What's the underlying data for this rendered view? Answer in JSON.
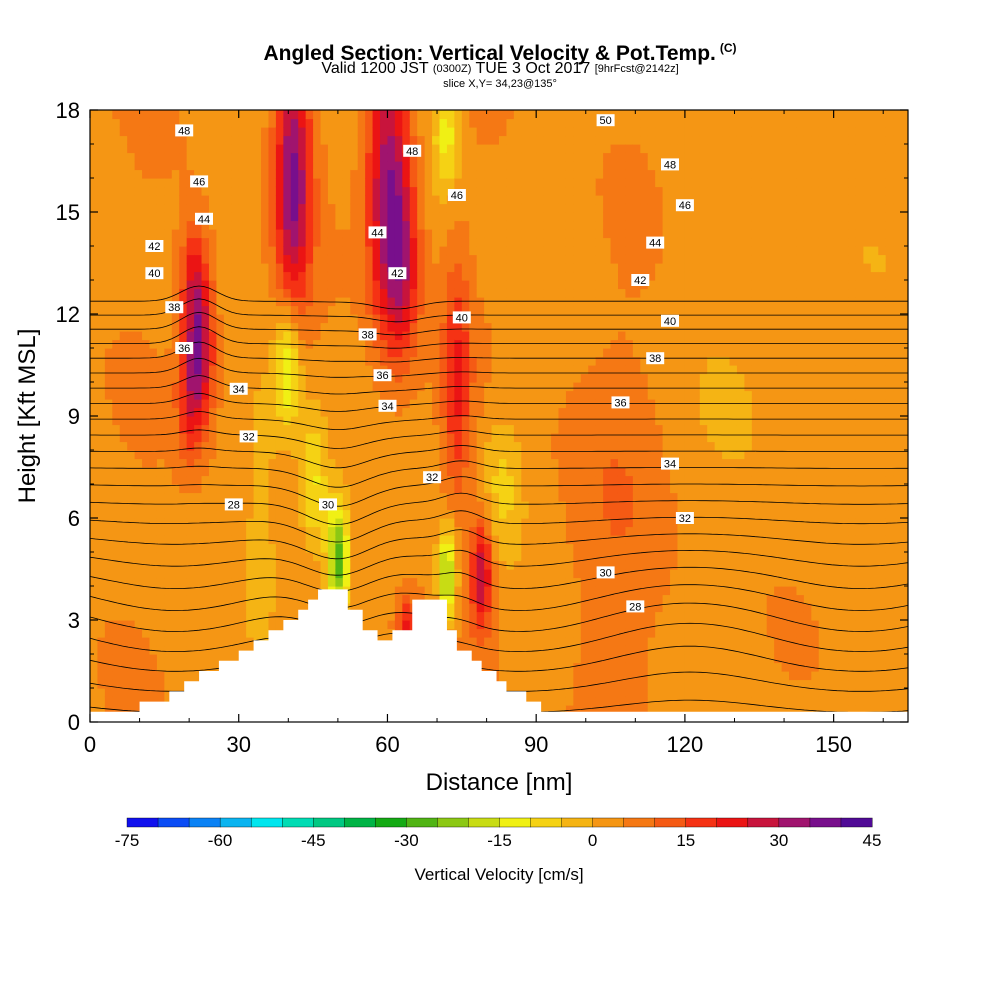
{
  "header": {
    "title": "Angled Section: Vertical Velocity & Pot.Temp.",
    "title_units": "(C)",
    "subtitle_main": "Valid 1200 JST",
    "subtitle_utc": "(0300Z)",
    "subtitle_date": "TUE 3 Oct 2017",
    "subtitle_fcst": "[9hrFcst@2142z]",
    "slice": "slice X,Y= 34,23@135°"
  },
  "chart_data": {
    "type": "heatmap",
    "xlabel": "Distance [nm]",
    "ylabel": "Height [Kft MSL]",
    "xlim": [
      0,
      165
    ],
    "ylim": [
      0,
      18
    ],
    "x_ticks": [
      0,
      30,
      60,
      90,
      120,
      150
    ],
    "y_ticks": [
      0,
      3,
      6,
      9,
      12,
      15,
      18
    ],
    "terrain": [
      [
        0,
        0.3
      ],
      [
        10,
        0.3
      ],
      [
        10,
        0.6
      ],
      [
        16,
        0.6
      ],
      [
        16,
        0.9
      ],
      [
        19,
        0.9
      ],
      [
        19,
        1.2
      ],
      [
        22,
        1.2
      ],
      [
        22,
        1.5
      ],
      [
        26,
        1.5
      ],
      [
        26,
        1.8
      ],
      [
        30,
        1.8
      ],
      [
        30,
        2.1
      ],
      [
        33,
        2.1
      ],
      [
        33,
        2.4
      ],
      [
        36,
        2.4
      ],
      [
        36,
        2.7
      ],
      [
        39,
        2.7
      ],
      [
        39,
        3.0
      ],
      [
        42,
        3.0
      ],
      [
        42,
        3.3
      ],
      [
        44,
        3.3
      ],
      [
        44,
        3.6
      ],
      [
        46,
        3.6
      ],
      [
        46,
        3.9
      ],
      [
        52,
        3.9
      ],
      [
        52,
        3.3
      ],
      [
        55,
        3.3
      ],
      [
        55,
        2.7
      ],
      [
        58,
        2.7
      ],
      [
        58,
        2.4
      ],
      [
        61,
        2.4
      ],
      [
        61,
        2.7
      ],
      [
        65,
        2.7
      ],
      [
        65,
        3.6
      ],
      [
        72,
        3.6
      ],
      [
        72,
        2.7
      ],
      [
        74,
        2.7
      ],
      [
        74,
        2.1
      ],
      [
        77,
        2.1
      ],
      [
        77,
        1.8
      ],
      [
        79,
        1.8
      ],
      [
        79,
        1.5
      ],
      [
        82,
        1.5
      ],
      [
        82,
        1.2
      ],
      [
        84,
        1.2
      ],
      [
        84,
        0.9
      ],
      [
        88,
        0.9
      ],
      [
        88,
        0.6
      ],
      [
        91,
        0.6
      ],
      [
        91,
        0.3
      ],
      [
        165,
        0.3
      ]
    ],
    "velocity_features": [
      {
        "x": 41,
        "y": 16.0,
        "sx": 2.5,
        "sy": 2.8,
        "w": 32
      },
      {
        "x": 60,
        "y": 16.0,
        "sx": 3.0,
        "sy": 3.0,
        "w": 30
      },
      {
        "x": 63,
        "y": 13.5,
        "sx": 2.5,
        "sy": 2.0,
        "w": 20
      },
      {
        "x": 22,
        "y": 11.0,
        "sx": 2.2,
        "sy": 1.5,
        "w": 30
      },
      {
        "x": 21,
        "y": 13.2,
        "sx": 2.0,
        "sy": 1.2,
        "w": 15
      },
      {
        "x": 20,
        "y": 9.2,
        "sx": 1.8,
        "sy": 1.2,
        "w": 12
      },
      {
        "x": 74,
        "y": 10.0,
        "sx": 2.0,
        "sy": 2.5,
        "w": 16
      },
      {
        "x": 79,
        "y": 4.4,
        "sx": 1.5,
        "sy": 1.2,
        "w": 26
      },
      {
        "x": 64,
        "y": 2.8,
        "sx": 1.5,
        "sy": 0.6,
        "w": 18
      },
      {
        "x": 105,
        "y": 6.0,
        "sx": 8.0,
        "sy": 4.0,
        "w": 5
      },
      {
        "x": 50,
        "y": 4.8,
        "sx": 1.6,
        "sy": 1.2,
        "w": -32
      },
      {
        "x": 45,
        "y": 7.0,
        "sx": 2.0,
        "sy": 1.5,
        "w": -16
      },
      {
        "x": 40,
        "y": 10.5,
        "sx": 1.8,
        "sy": 1.4,
        "w": -20
      },
      {
        "x": 72,
        "y": 4.3,
        "sx": 1.3,
        "sy": 1.0,
        "w": -28
      },
      {
        "x": 72,
        "y": 17.3,
        "sx": 2.0,
        "sy": 1.2,
        "w": -16
      },
      {
        "x": 83,
        "y": 7.0,
        "sx": 3.0,
        "sy": 1.5,
        "w": -10
      },
      {
        "x": 35,
        "y": 6.0,
        "sx": 3.0,
        "sy": 3.0,
        "w": -6
      },
      {
        "x": 140,
        "y": 11.0,
        "sx": 15.0,
        "sy": 4.0,
        "w": -3
      }
    ],
    "contours": {
      "levels": [
        27,
        28,
        29,
        30,
        31,
        32,
        33,
        34,
        35,
        36,
        37,
        38,
        39,
        40,
        41,
        42,
        43,
        44,
        45,
        46,
        47,
        48,
        49,
        50
      ],
      "labels": [
        {
          "v": "48",
          "x": 19,
          "y": 17.4
        },
        {
          "v": "46",
          "x": 22,
          "y": 15.9
        },
        {
          "v": "44",
          "x": 23,
          "y": 14.8
        },
        {
          "v": "42",
          "x": 13,
          "y": 14.0
        },
        {
          "v": "40",
          "x": 13,
          "y": 13.2
        },
        {
          "v": "38",
          "x": 17,
          "y": 12.2
        },
        {
          "v": "36",
          "x": 19,
          "y": 11.0
        },
        {
          "v": "34",
          "x": 30,
          "y": 9.8
        },
        {
          "v": "32",
          "x": 32,
          "y": 8.4
        },
        {
          "v": "28",
          "x": 29,
          "y": 6.4
        },
        {
          "v": "30",
          "x": 48,
          "y": 6.4
        },
        {
          "v": "48",
          "x": 65,
          "y": 16.8
        },
        {
          "v": "46",
          "x": 74,
          "y": 15.5
        },
        {
          "v": "44",
          "x": 58,
          "y": 14.4
        },
        {
          "v": "42",
          "x": 62,
          "y": 13.2
        },
        {
          "v": "40",
          "x": 75,
          "y": 11.9
        },
        {
          "v": "38",
          "x": 56,
          "y": 11.4
        },
        {
          "v": "36",
          "x": 59,
          "y": 10.2
        },
        {
          "v": "34",
          "x": 60,
          "y": 9.3
        },
        {
          "v": "32",
          "x": 69,
          "y": 7.2
        },
        {
          "v": "50",
          "x": 104,
          "y": 17.7
        },
        {
          "v": "48",
          "x": 117,
          "y": 16.4
        },
        {
          "v": "46",
          "x": 120,
          "y": 15.2
        },
        {
          "v": "44",
          "x": 114,
          "y": 14.1
        },
        {
          "v": "42",
          "x": 111,
          "y": 13.0
        },
        {
          "v": "40",
          "x": 117,
          "y": 11.8
        },
        {
          "v": "38",
          "x": 114,
          "y": 10.7
        },
        {
          "v": "36",
          "x": 107,
          "y": 9.4
        },
        {
          "v": "34",
          "x": 117,
          "y": 7.6
        },
        {
          "v": "32",
          "x": 120,
          "y": 6.0
        },
        {
          "v": "30",
          "x": 104,
          "y": 4.4
        },
        {
          "v": "28",
          "x": 110,
          "y": 3.4
        }
      ]
    },
    "colorbar": {
      "title": "Vertical Velocity [cm/s]",
      "min": -75,
      "max": 45,
      "step": 5,
      "tick_labels": [
        "-75",
        "-60",
        "-45",
        "-30",
        "-15",
        "0",
        "15",
        "30",
        "45"
      ],
      "colors": [
        "#1010ee",
        "#0a4cf5",
        "#0a82f5",
        "#0ab4f0",
        "#00e6ee",
        "#00dcb4",
        "#00c882",
        "#00b446",
        "#14aa14",
        "#50b414",
        "#8cc814",
        "#c8dc14",
        "#f0f014",
        "#f5d214",
        "#f5b414",
        "#f59614",
        "#f57814",
        "#f55a14",
        "#f53214",
        "#eb1414",
        "#c8143c",
        "#a0146e",
        "#780f8c",
        "#500a96"
      ]
    }
  }
}
